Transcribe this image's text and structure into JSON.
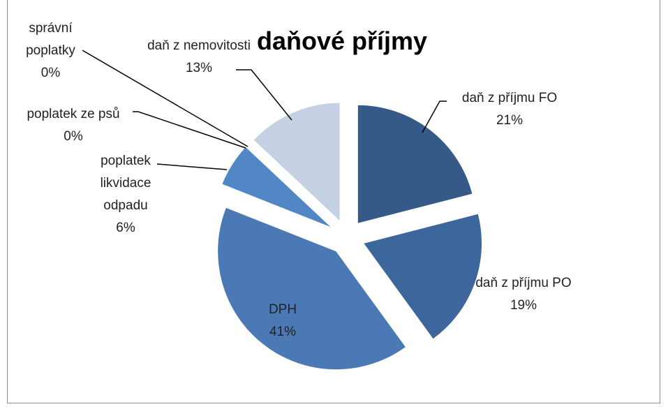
{
  "chart_data": {
    "type": "pie",
    "title": "daňové příjmy",
    "categories": [
      "daň z příjmu FO",
      "daň z příjmu PO",
      "DPH",
      "poplatek likvidace odpadu",
      "poplatek ze psů",
      "správní poplatky",
      "daň z nemovitosti"
    ],
    "values": [
      21,
      19,
      41,
      6,
      0,
      0,
      13
    ],
    "value_labels": [
      "21%",
      "19%",
      "41%",
      "6%",
      "0%",
      "0%",
      "13%"
    ],
    "colors": [
      "#355a88",
      "#3d679c",
      "#4a79b5",
      "#5287c6",
      "#8fa8cf",
      "#a9bcdc",
      "#c5d0e3"
    ]
  }
}
